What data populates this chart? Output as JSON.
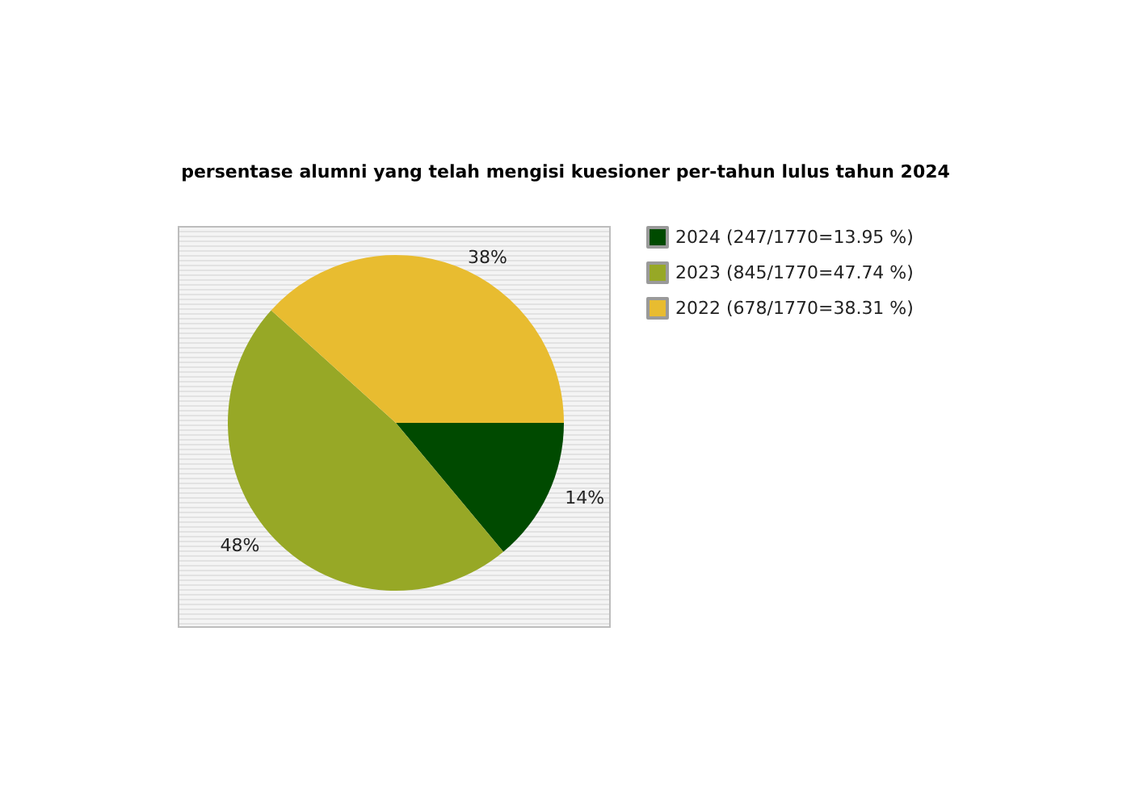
{
  "chart_data": {
    "type": "pie",
    "title": "persentase alumni yang telah mengisi kuesioner per-tahun lulus tahun 2024",
    "categories": [
      "2024 (247/1770=13.95 %)",
      "2023 (845/1770=47.74 %)",
      "2022 (678/1770=38.31 %)"
    ],
    "values": [
      13.95,
      47.74,
      38.31
    ],
    "colors": [
      "#004a00",
      "#97a826",
      "#e8bc30"
    ],
    "value_labels": [
      "14%",
      "48%",
      "38%"
    ],
    "legend": "top right"
  }
}
